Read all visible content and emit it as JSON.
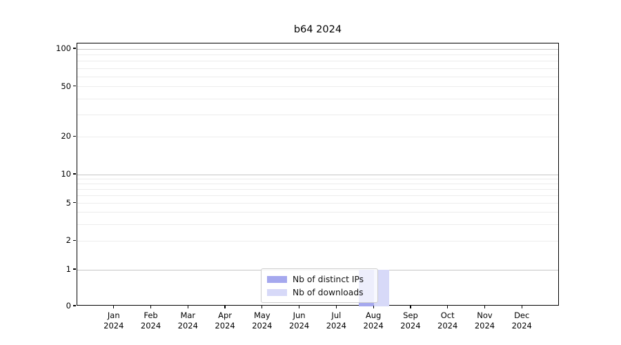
{
  "chart_data": {
    "type": "bar",
    "title": "b64 2024",
    "categories": [
      "Jan 2024",
      "Feb 2024",
      "Mar 2024",
      "Apr 2024",
      "May 2024",
      "Jun 2024",
      "Jul 2024",
      "Aug 2024",
      "Sep 2024",
      "Oct 2024",
      "Nov 2024",
      "Dec 2024"
    ],
    "series": [
      {
        "name": "Nb of distinct IPs",
        "color": "#a5a8ee",
        "values": [
          0,
          0,
          0,
          0,
          0,
          0,
          0,
          1,
          0,
          0,
          0,
          0
        ]
      },
      {
        "name": "Nb of downloads",
        "color": "#d7d9f8",
        "values": [
          0,
          0,
          0,
          0,
          0,
          0,
          0,
          1,
          0,
          0,
          0,
          0
        ]
      }
    ],
    "x_axis": {
      "tick_label_lines": "month,year"
    },
    "y_axis": {
      "scale": "symlog",
      "ticks": [
        {
          "value": 0,
          "label": "0"
        },
        {
          "value": 1,
          "label": "1"
        },
        {
          "value": 2,
          "label": "2"
        },
        {
          "value": 5,
          "label": "5"
        },
        {
          "value": 10,
          "label": "10"
        },
        {
          "value": 20,
          "label": "20"
        },
        {
          "value": 50,
          "label": "50"
        },
        {
          "value": 100,
          "label": "100"
        }
      ],
      "major_grid_values": [
        1,
        10,
        100
      ],
      "minor_grid_values": [
        2,
        3,
        4,
        5,
        6,
        7,
        8,
        9,
        20,
        30,
        40,
        50,
        60,
        70,
        80,
        90
      ],
      "range_max": 110
    },
    "legend": {
      "position": "lower center",
      "entries": [
        "Nb of distinct IPs",
        "Nb of downloads"
      ]
    },
    "grid": true,
    "colors": {
      "background": "#ffffff",
      "spine": "#000000",
      "major_grid": "#c6c6c6",
      "minor_grid": "#ececec",
      "legend_border": "#cccccc"
    }
  }
}
